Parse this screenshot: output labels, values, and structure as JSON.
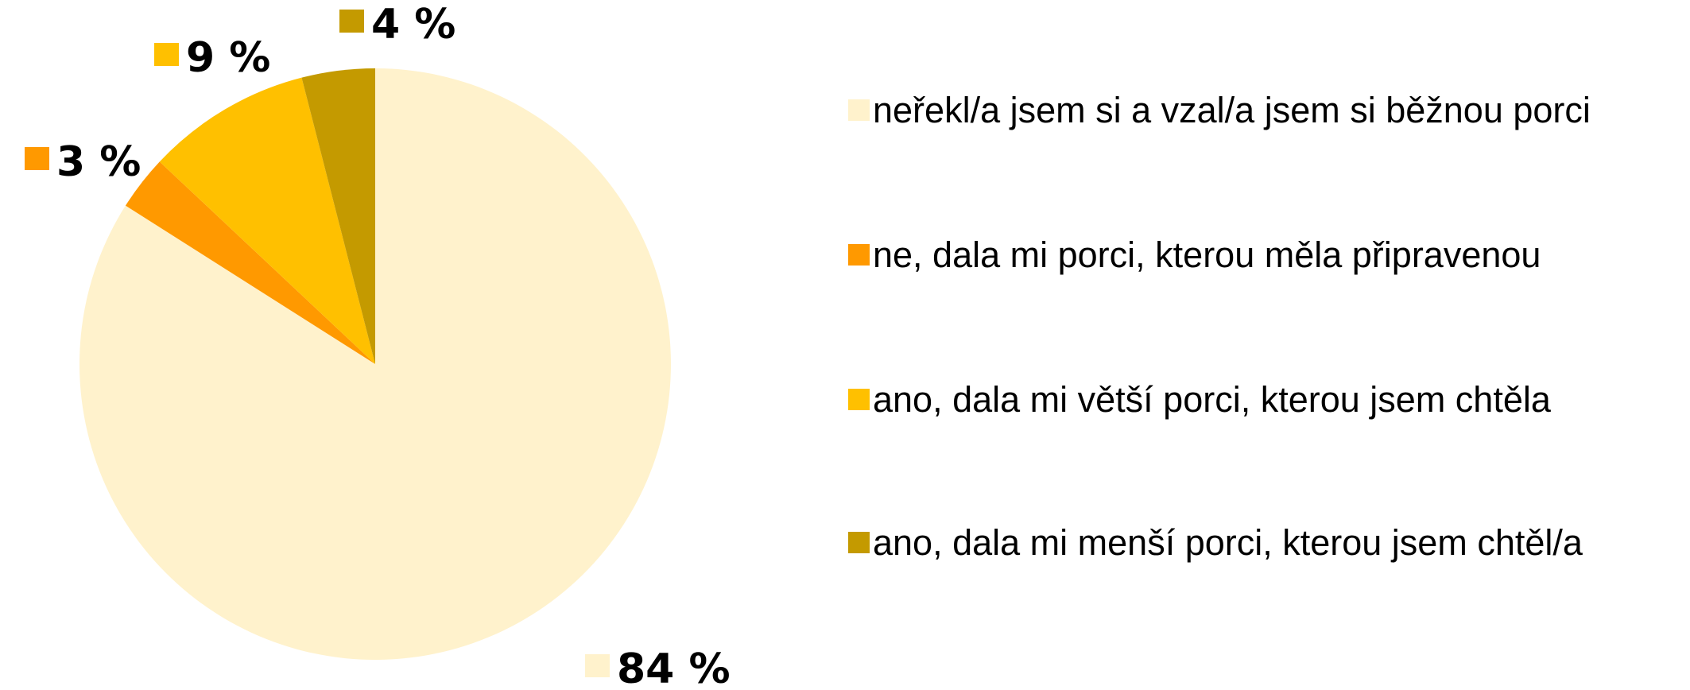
{
  "chart_data": {
    "type": "pie",
    "categories": [
      "neřekl/a jsem si a vzal/a jsem si běžnou porci",
      "ne, dala mi porci, kterou měla připravenou",
      "ano, dala mi větší porci, kterou jsem chtěla",
      "ano, dala mi menší porci, kterou jsem chtěl/a"
    ],
    "values": [
      84,
      3,
      9,
      4
    ],
    "value_labels": [
      "84 %",
      "3 %",
      "9 %",
      "4 %"
    ],
    "colors": [
      "#FFF2CC",
      "#FF9900",
      "#FFC000",
      "#C49A00"
    ],
    "legend": "right"
  }
}
